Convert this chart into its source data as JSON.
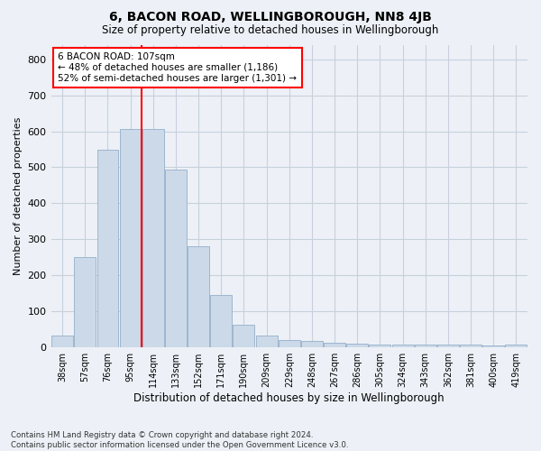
{
  "title": "6, BACON ROAD, WELLINGBOROUGH, NN8 4JB",
  "subtitle": "Size of property relative to detached houses in Wellingborough",
  "xlabel": "Distribution of detached houses by size in Wellingborough",
  "ylabel": "Number of detached properties",
  "footer_line1": "Contains HM Land Registry data © Crown copyright and database right 2024.",
  "footer_line2": "Contains public sector information licensed under the Open Government Licence v3.0.",
  "bar_labels": [
    "38sqm",
    "57sqm",
    "76sqm",
    "95sqm",
    "114sqm",
    "133sqm",
    "152sqm",
    "171sqm",
    "190sqm",
    "209sqm",
    "229sqm",
    "248sqm",
    "267sqm",
    "286sqm",
    "305sqm",
    "324sqm",
    "343sqm",
    "362sqm",
    "381sqm",
    "400sqm",
    "419sqm"
  ],
  "bar_values": [
    33,
    250,
    548,
    607,
    607,
    493,
    280,
    145,
    62,
    32,
    20,
    16,
    12,
    10,
    6,
    6,
    8,
    6,
    6,
    5,
    8
  ],
  "bar_color": "#ccd9e8",
  "bar_edgecolor": "#94afc9",
  "background_color": "#edf1f7",
  "grid_color": "#c8d0dc",
  "red_line_index": 4,
  "annotation_line1": "6 BACON ROAD: 107sqm",
  "annotation_line2": "← 48% of detached houses are smaller (1,186)",
  "annotation_line3": "52% of semi-detached houses are larger (1,301) →",
  "ylim_max": 840,
  "yticks": [
    0,
    100,
    200,
    300,
    400,
    500,
    600,
    700,
    800
  ]
}
